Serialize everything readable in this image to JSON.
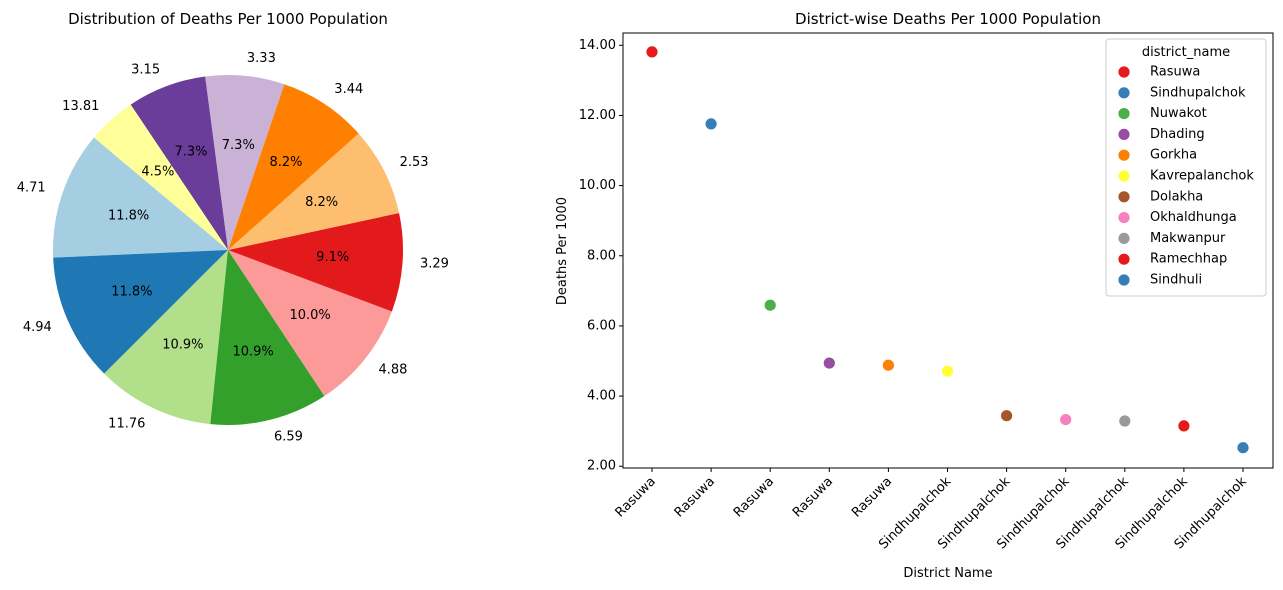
{
  "chart_data": [
    {
      "type": "pie",
      "title": "Distribution of Deaths Per 1000 Population",
      "start_angle_deg": 140,
      "direction": "counterclockwise",
      "slices": [
        {
          "label": "4.71",
          "pct_label": "11.8%",
          "percent": 11.8,
          "color": "#a6cee3"
        },
        {
          "label": "4.94",
          "pct_label": "11.8%",
          "percent": 11.8,
          "color": "#1f78b4"
        },
        {
          "label": "11.76",
          "pct_label": "10.9%",
          "percent": 10.9,
          "color": "#b2df8a"
        },
        {
          "label": "6.59",
          "pct_label": "10.9%",
          "percent": 10.9,
          "color": "#33a02c"
        },
        {
          "label": "4.88",
          "pct_label": "10.0%",
          "percent": 10.0,
          "color": "#fb9a99"
        },
        {
          "label": "3.29",
          "pct_label": "9.1%",
          "percent": 9.1,
          "color": "#e31a1c"
        },
        {
          "label": "2.53",
          "pct_label": "8.2%",
          "percent": 8.2,
          "color": "#fdbf6f"
        },
        {
          "label": "3.44",
          "pct_label": "8.2%",
          "percent": 8.2,
          "color": "#ff7f00"
        },
        {
          "label": "3.33",
          "pct_label": "7.3%",
          "percent": 7.3,
          "color": "#cab2d6"
        },
        {
          "label": "3.15",
          "pct_label": "7.3%",
          "percent": 7.3,
          "color": "#6a3d9a"
        },
        {
          "label": "13.81",
          "pct_label": "4.5%",
          "percent": 4.5,
          "color": "#ffff99"
        }
      ]
    },
    {
      "type": "scatter",
      "title": "District-wise Deaths Per 1000 Population",
      "xlabel": "District Name",
      "ylabel": "Deaths Per 1000",
      "ylim": [
        1.95,
        14.35
      ],
      "yticks": [
        2.0,
        4.0,
        6.0,
        8.0,
        10.0,
        12.0,
        14.0
      ],
      "ytick_labels": [
        "2.00",
        "4.00",
        "6.00",
        "8.00",
        "10.00",
        "12.00",
        "14.00"
      ],
      "xtick_labels": [
        "Rasuwa",
        "Rasuwa",
        "Rasuwa",
        "Rasuwa",
        "Rasuwa",
        "Sindhupalchok",
        "Sindhupalchok",
        "Sindhupalchok",
        "Sindhupalchok",
        "Sindhupalchok",
        "Sindhupalchok"
      ],
      "legend_title": "district_name",
      "legend_position": "upper right",
      "points": [
        {
          "district": "Rasuwa",
          "y": 13.81,
          "color": "#e41a1c"
        },
        {
          "district": "Sindhupalchok",
          "y": 11.76,
          "color": "#377eb8"
        },
        {
          "district": "Nuwakot",
          "y": 6.59,
          "color": "#4daf4a"
        },
        {
          "district": "Dhading",
          "y": 4.94,
          "color": "#984ea3"
        },
        {
          "district": "Gorkha",
          "y": 4.88,
          "color": "#ff7f00"
        },
        {
          "district": "Kavrepalanchok",
          "y": 4.71,
          "color": "#ffff33"
        },
        {
          "district": "Dolakha",
          "y": 3.44,
          "color": "#a65628"
        },
        {
          "district": "Okhaldhunga",
          "y": 3.33,
          "color": "#f781bf"
        },
        {
          "district": "Makwanpur",
          "y": 3.29,
          "color": "#999999"
        },
        {
          "district": "Ramechhap",
          "y": 3.15,
          "color": "#e41a1c"
        },
        {
          "district": "Sindhuli",
          "y": 2.53,
          "color": "#377eb8"
        }
      ]
    }
  ]
}
